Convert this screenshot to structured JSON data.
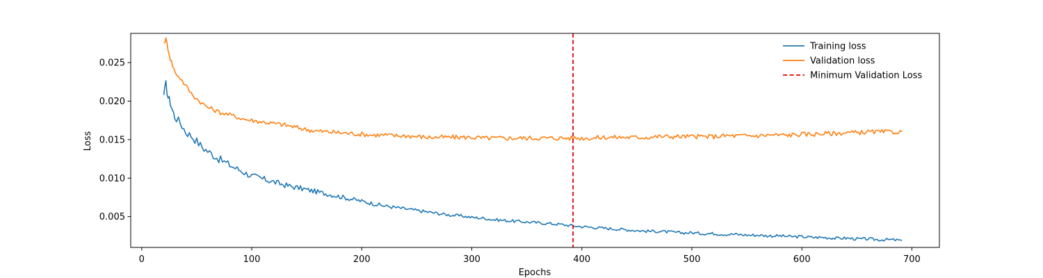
{
  "chart_data": {
    "type": "line",
    "title": "",
    "xlabel": "Epochs",
    "ylabel": "Loss",
    "xlim": [
      -10,
      725
    ],
    "ylim": [
      0.001,
      0.0288
    ],
    "xticks": [
      0,
      100,
      200,
      300,
      400,
      500,
      600,
      700
    ],
    "yticks": [
      0.005,
      0.01,
      0.015,
      0.02,
      0.025
    ],
    "ytick_labels": [
      "0.005",
      "0.010",
      "0.015",
      "0.020",
      "0.025"
    ],
    "grid": false,
    "legend_position": "top-right",
    "series": [
      {
        "name": "Training loss",
        "color": "#1f77b4",
        "style": "solid",
        "x": [
          20,
          22,
          24,
          26,
          28,
          30,
          35,
          40,
          45,
          50,
          55,
          60,
          65,
          70,
          75,
          80,
          85,
          90,
          95,
          100,
          110,
          120,
          130,
          140,
          150,
          160,
          170,
          180,
          190,
          200,
          210,
          220,
          230,
          240,
          250,
          260,
          270,
          280,
          290,
          300,
          310,
          320,
          330,
          340,
          350,
          360,
          370,
          380,
          392,
          400,
          410,
          420,
          430,
          440,
          450,
          460,
          470,
          480,
          490,
          500,
          510,
          520,
          530,
          540,
          550,
          560,
          570,
          580,
          590,
          600,
          610,
          620,
          630,
          640,
          650,
          660,
          670,
          680,
          691
        ],
        "y": [
          0.0208,
          0.0222,
          0.0205,
          0.0198,
          0.0188,
          0.018,
          0.0172,
          0.016,
          0.0155,
          0.0148,
          0.014,
          0.0135,
          0.013,
          0.0125,
          0.0121,
          0.0117,
          0.0113,
          0.011,
          0.0106,
          0.0103,
          0.0099,
          0.0095,
          0.0091,
          0.0088,
          0.0085,
          0.0082,
          0.0079,
          0.0076,
          0.0073,
          0.007,
          0.0067,
          0.0064,
          0.0062,
          0.006,
          0.0058,
          0.0056,
          0.0054,
          0.0052,
          0.0051,
          0.0049,
          0.0048,
          0.0046,
          0.0045,
          0.0044,
          0.0043,
          0.0042,
          0.0041,
          0.004,
          0.0038,
          0.0037,
          0.0036,
          0.0035,
          0.0034,
          0.0033,
          0.0032,
          0.0031,
          0.0031,
          0.003,
          0.0029,
          0.0029,
          0.0028,
          0.0028,
          0.0027,
          0.0027,
          0.0026,
          0.0026,
          0.0025,
          0.0025,
          0.0024,
          0.0024,
          0.0023,
          0.0023,
          0.0022,
          0.0022,
          0.0021,
          0.0021,
          0.002,
          0.002,
          0.0019
        ]
      },
      {
        "name": "Validation loss",
        "color": "#ff7f0e",
        "style": "solid",
        "x": [
          20,
          22,
          24,
          26,
          28,
          30,
          35,
          40,
          45,
          50,
          55,
          60,
          65,
          70,
          75,
          80,
          85,
          90,
          95,
          100,
          110,
          120,
          130,
          140,
          150,
          160,
          170,
          180,
          190,
          200,
          210,
          220,
          230,
          240,
          250,
          260,
          270,
          280,
          290,
          300,
          310,
          320,
          330,
          340,
          350,
          360,
          370,
          380,
          392,
          400,
          410,
          420,
          430,
          440,
          450,
          460,
          470,
          480,
          490,
          500,
          510,
          520,
          530,
          540,
          550,
          560,
          570,
          580,
          590,
          600,
          610,
          620,
          630,
          640,
          650,
          660,
          670,
          680,
          691
        ],
        "y": [
          0.0276,
          0.028,
          0.0268,
          0.0255,
          0.0247,
          0.0238,
          0.023,
          0.022,
          0.021,
          0.0203,
          0.0197,
          0.0192,
          0.0189,
          0.0186,
          0.0184,
          0.0182,
          0.018,
          0.0178,
          0.0176,
          0.0175,
          0.0173,
          0.0171,
          0.0169,
          0.0166,
          0.0163,
          0.0161,
          0.016,
          0.0159,
          0.0158,
          0.0157,
          0.0156,
          0.0156,
          0.0155,
          0.0155,
          0.0154,
          0.0153,
          0.0153,
          0.0153,
          0.0153,
          0.0153,
          0.0152,
          0.0152,
          0.0152,
          0.0152,
          0.0152,
          0.0152,
          0.0152,
          0.0152,
          0.0152,
          0.0152,
          0.0152,
          0.0153,
          0.0153,
          0.0153,
          0.0153,
          0.0153,
          0.0154,
          0.0154,
          0.0154,
          0.0154,
          0.0154,
          0.0154,
          0.0155,
          0.0155,
          0.0155,
          0.0155,
          0.0156,
          0.0156,
          0.0156,
          0.0157,
          0.0157,
          0.0158,
          0.0158,
          0.0159,
          0.0159,
          0.016,
          0.016,
          0.016,
          0.016
        ]
      }
    ],
    "vline": {
      "name": "Minimum Validation Loss",
      "x": 392,
      "color": "#e00000",
      "style": "dashed"
    }
  }
}
